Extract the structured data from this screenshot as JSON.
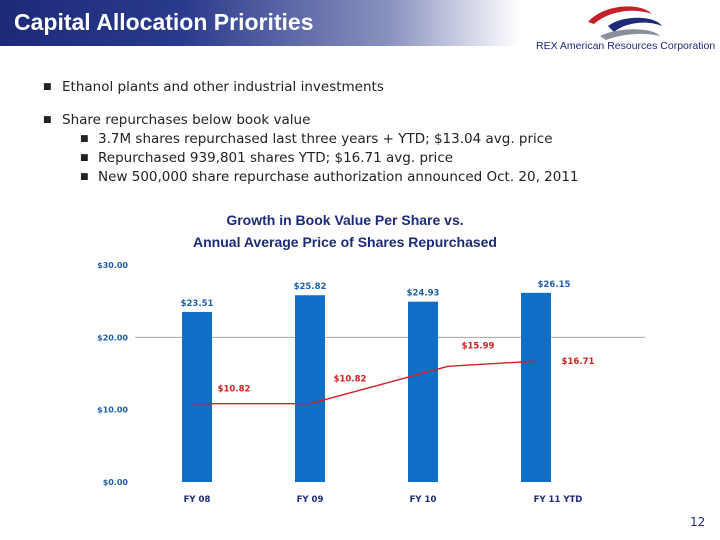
{
  "slide": {
    "title": "Capital Allocation Priorities",
    "company": "REX American Resources Corporation",
    "page_number": "12"
  },
  "bullets": [
    {
      "level": 1,
      "text": "Ethanol plants and other industrial investments"
    },
    {
      "level": 1,
      "text": "Share repurchases below book value"
    },
    {
      "level": 2,
      "text": "3.7M shares repurchased last three years + YTD; $13.04 avg. price"
    },
    {
      "level": 2,
      "text": "Repurchased 939,801 shares YTD; $16.71 avg. price"
    },
    {
      "level": 2,
      "text": "New 500,000 share repurchase authorization announced Oct. 20, 2011"
    }
  ],
  "chart_data": {
    "type": "bar",
    "title": "Growth in Book Value Per Share vs. Annual Average Price of Shares Repurchased",
    "title_lines": [
      "Growth in Book Value Per Share vs.",
      "Annual Average Price of Shares Repurchased"
    ],
    "categories": [
      "FY 08",
      "FY 09",
      "FY 10",
      "FY 11 YTD"
    ],
    "series": [
      {
        "name": "Book Value Per Share",
        "type": "bar",
        "color": "#0f6fc6",
        "values": [
          23.51,
          25.82,
          24.93,
          26.15
        ],
        "labels": [
          "$23.51",
          "$25.82",
          "$24.93",
          "$26.15"
        ]
      },
      {
        "name": "Average Price of Shares Repurchased",
        "type": "line",
        "color": "#d42020",
        "values": [
          10.82,
          10.82,
          15.99,
          16.71
        ],
        "labels": [
          "$10.82",
          "$10.82",
          "$15.99",
          "$16.71"
        ]
      }
    ],
    "ylim": [
      0,
      30
    ],
    "yticks": [
      0,
      10,
      20,
      30
    ],
    "ytick_labels": [
      "$0.00",
      "$10.00",
      "$20.00",
      "$30.00"
    ],
    "xlabel": "",
    "ylabel": "",
    "grid": false,
    "legend": "none",
    "colors": {
      "label_text": "#1f5fa8",
      "axis_line": "#999999",
      "title_text": "#1c2a78"
    }
  }
}
